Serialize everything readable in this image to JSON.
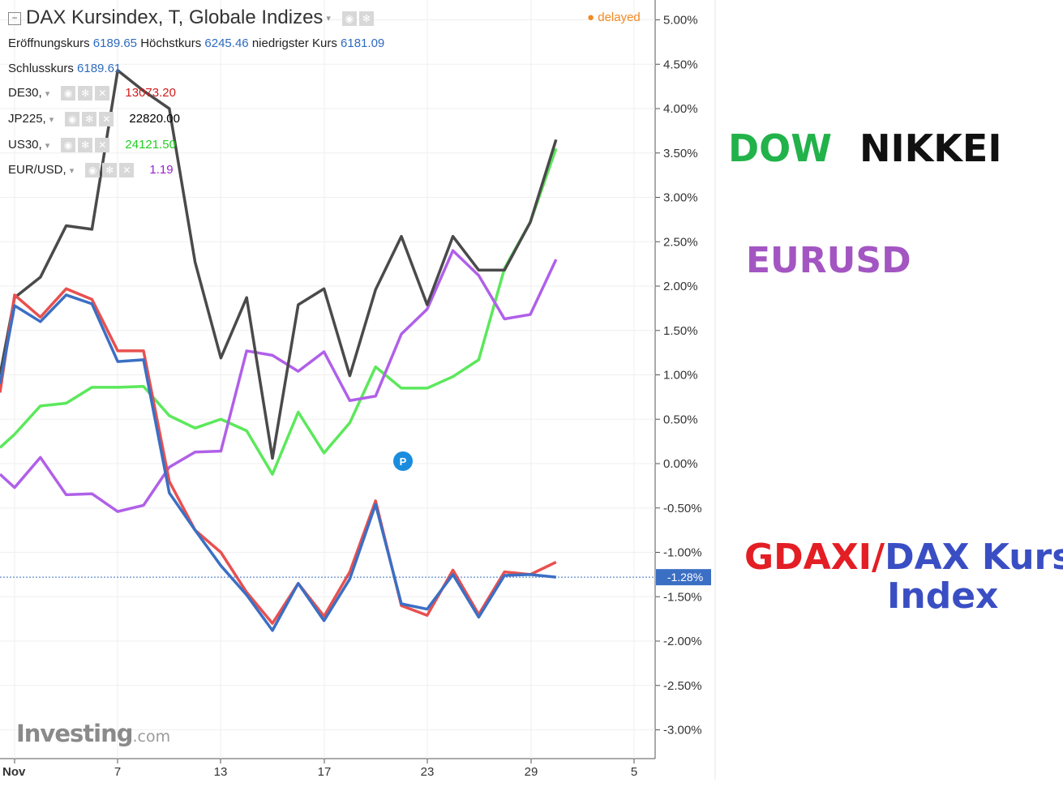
{
  "header": {
    "title": "DAX Kursindex, T, Globale Indizes",
    "delayed": "delayed",
    "open_label": "Eröffnungskurs",
    "open_value": "6189.65",
    "high_label": "Höchstkurs",
    "high_value": "6245.46",
    "low_label": "niedrigster Kurs",
    "low_value": "6181.09",
    "close_label": "Schlusskurs",
    "close_value": "6189.61"
  },
  "legend_rows": [
    {
      "name": "DE30,",
      "value": "13073.20",
      "color": "#d01b1b"
    },
    {
      "name": "JP225,",
      "value": "22820.00",
      "color": "#000000"
    },
    {
      "name": "US30,",
      "value": "24121.50",
      "color": "#22cc22"
    },
    {
      "name": "EUR/USD,",
      "value": "1.19",
      "color": "#9922cc"
    }
  ],
  "annotations": {
    "dow": "DOW",
    "nikkei": "NIKKEI",
    "eurusd": "EURUSD",
    "gdaxi": "GDAXI",
    "slash": "/",
    "dax_kurs": "DAX Kurs",
    "index": "Index"
  },
  "logo": {
    "main": "Investing",
    "suffix": ".com"
  },
  "marker": "P",
  "current_value_label": "-1.28%",
  "colors": {
    "gdaxi": "#e8504f",
    "dax": "#3b6fc4",
    "nikkei": "#4a4a4a",
    "dow": "#5be85b",
    "eurusd": "#b060e8",
    "accent_blue": "#2e6bbf",
    "label_green": "#22b24a",
    "label_purple": "#a356c2",
    "label_red": "#e31e24",
    "label_blue": "#3a4ec4"
  },
  "chart_data": {
    "type": "line",
    "x": [
      "Nov 1",
      "Nov 2",
      "Nov 3",
      "Nov 6",
      "Nov 7",
      "Nov 8",
      "Nov 9",
      "Nov 10",
      "Nov 13",
      "Nov 14",
      "Nov 15",
      "Nov 16",
      "Nov 17",
      "Nov 20",
      "Nov 21",
      "Nov 22",
      "Nov 23",
      "Nov 24",
      "Nov 27",
      "Nov 28",
      "Nov 29",
      "Nov 30"
    ],
    "x_ticks": [
      "Nov",
      "7",
      "13",
      "17",
      "23",
      "29",
      "5"
    ],
    "y_ticks": [
      "5.00%",
      "4.50%",
      "4.00%",
      "3.50%",
      "3.00%",
      "2.50%",
      "2.00%",
      "1.50%",
      "1.00%",
      "0.50%",
      "0.00%",
      "-0.50%",
      "-1.00%",
      "-1.50%",
      "-2.00%",
      "-2.50%",
      "-3.00%"
    ],
    "ylim": [
      -3.3,
      5.2
    ],
    "series": [
      {
        "name": "DE30",
        "key": "gdaxi",
        "values": [
          1.9,
          1.65,
          1.97,
          1.85,
          1.27,
          1.27,
          -0.2,
          -0.75,
          -1.0,
          -1.45,
          -1.8,
          -1.35,
          -1.72,
          -1.22,
          -0.42,
          -1.6,
          -1.71,
          -1.2,
          -1.7,
          -1.22,
          -1.25,
          -1.11
        ]
      },
      {
        "name": "DAX Kursindex",
        "key": "dax",
        "values": [
          1.78,
          1.6,
          1.9,
          1.8,
          1.15,
          1.17,
          -0.33,
          -0.75,
          -1.15,
          -1.48,
          -1.88,
          -1.35,
          -1.77,
          -1.3,
          -0.46,
          -1.58,
          -1.64,
          -1.25,
          -1.73,
          -1.26,
          -1.25,
          -1.28
        ]
      },
      {
        "name": "JP225",
        "key": "nikkei",
        "values": [
          1.87,
          2.1,
          2.68,
          2.64,
          4.43,
          4.2,
          4.0,
          2.27,
          1.19,
          1.87,
          0.06,
          1.79,
          1.97,
          0.99,
          1.96,
          2.56,
          1.79,
          2.56,
          2.18,
          2.18,
          2.72,
          3.65
        ]
      },
      {
        "name": "US30",
        "key": "dow",
        "values": [
          0.33,
          0.65,
          0.68,
          0.86,
          0.86,
          0.87,
          0.54,
          0.4,
          0.5,
          0.37,
          -0.12,
          0.58,
          0.12,
          0.46,
          1.09,
          0.85,
          0.85,
          0.98,
          1.17,
          2.2,
          2.72,
          3.55
        ]
      },
      {
        "name": "EUR/USD",
        "key": "eurusd",
        "values": [
          -0.27,
          0.07,
          -0.35,
          -0.34,
          -0.54,
          -0.47,
          -0.04,
          0.13,
          0.14,
          1.27,
          1.22,
          1.04,
          1.26,
          0.71,
          0.76,
          1.46,
          1.74,
          2.4,
          2.12,
          1.63,
          1.68,
          2.3
        ]
      }
    ]
  }
}
